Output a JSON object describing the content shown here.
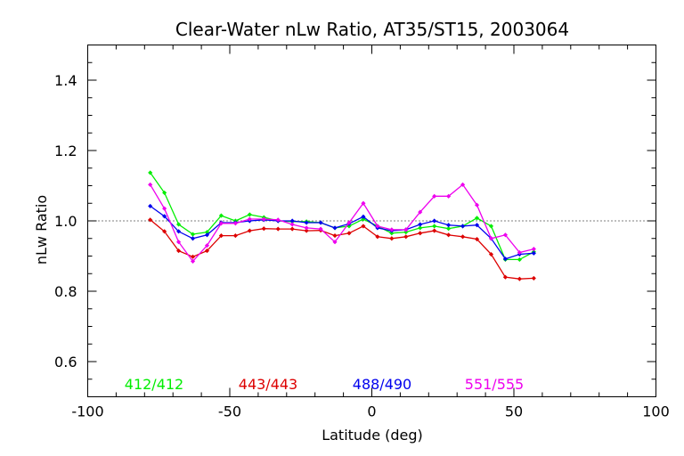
{
  "chart_data": {
    "type": "line",
    "title": "Clear-Water nLw Ratio, AT35/ST15, 2003064",
    "xlabel": "Latitude (deg)",
    "ylabel": "nLw Ratio",
    "xlim": [
      -100,
      100
    ],
    "ylim": [
      0.5,
      1.5
    ],
    "x_ticks": [
      "-100",
      "-50",
      "0",
      "50",
      "100"
    ],
    "y_ticks": [
      "0.6",
      "0.8",
      "1.0",
      "1.2",
      "1.4"
    ],
    "x_tick_values": [
      -100,
      -50,
      0,
      50,
      100
    ],
    "y_tick_values": [
      0.6,
      0.8,
      1.0,
      1.2,
      1.4
    ],
    "reference_line": 1.0,
    "legend_position": "bottom inside plot",
    "series": [
      {
        "name": "412/412",
        "color": "#00ee00",
        "x": [
          -78,
          -73,
          -68,
          -63,
          -58,
          -53,
          -48,
          -43,
          -38,
          -33,
          -28,
          -23,
          -18,
          -13,
          -8,
          -3,
          2,
          7,
          12,
          17,
          22,
          27,
          32,
          37,
          42,
          47,
          52,
          57
        ],
        "y": [
          1.137,
          1.08,
          0.99,
          0.962,
          0.968,
          1.015,
          1.0,
          1.018,
          1.01,
          1.0,
          0.998,
          0.998,
          0.995,
          0.98,
          0.985,
          1.005,
          0.985,
          0.965,
          0.968,
          0.98,
          0.985,
          0.978,
          0.985,
          1.008,
          0.985,
          0.89,
          0.89,
          0.912
        ]
      },
      {
        "name": "443/443",
        "color": "#dd0000",
        "x": [
          -78,
          -73,
          -68,
          -63,
          -58,
          -53,
          -48,
          -43,
          -38,
          -33,
          -28,
          -23,
          -18,
          -13,
          -8,
          -3,
          2,
          7,
          12,
          17,
          22,
          27,
          32,
          37,
          42,
          47,
          52,
          57
        ],
        "y": [
          1.003,
          0.97,
          0.915,
          0.898,
          0.915,
          0.958,
          0.958,
          0.972,
          0.978,
          0.977,
          0.977,
          0.972,
          0.973,
          0.958,
          0.965,
          0.985,
          0.955,
          0.95,
          0.955,
          0.965,
          0.972,
          0.96,
          0.955,
          0.948,
          0.905,
          0.84,
          0.835,
          0.837
        ]
      },
      {
        "name": "488/490",
        "color": "#0000ee",
        "x": [
          -78,
          -73,
          -68,
          -63,
          -58,
          -53,
          -48,
          -43,
          -38,
          -33,
          -28,
          -23,
          -18,
          -13,
          -8,
          -3,
          2,
          7,
          12,
          17,
          22,
          27,
          32,
          37,
          42,
          47,
          52,
          57
        ],
        "y": [
          1.042,
          1.013,
          0.97,
          0.95,
          0.96,
          0.995,
          0.995,
          1.0,
          1.003,
          1.0,
          1.0,
          0.995,
          0.995,
          0.98,
          0.992,
          1.012,
          0.98,
          0.972,
          0.975,
          0.99,
          1.0,
          0.988,
          0.985,
          0.988,
          0.95,
          0.892,
          0.905,
          0.908
        ]
      },
      {
        "name": "551/555",
        "color": "#ee00ee",
        "x": [
          -78,
          -73,
          -68,
          -63,
          -58,
          -53,
          -48,
          -43,
          -38,
          -33,
          -28,
          -23,
          -18,
          -13,
          -8,
          -3,
          2,
          7,
          12,
          17,
          22,
          27,
          32,
          37,
          42,
          47,
          52,
          57
        ],
        "y": [
          1.103,
          1.035,
          0.94,
          0.885,
          0.93,
          0.993,
          0.993,
          1.005,
          1.005,
          1.003,
          0.99,
          0.98,
          0.977,
          0.94,
          0.995,
          1.05,
          0.985,
          0.975,
          0.975,
          1.025,
          1.07,
          1.07,
          1.103,
          1.045,
          0.95,
          0.96,
          0.91,
          0.92
        ]
      }
    ]
  }
}
